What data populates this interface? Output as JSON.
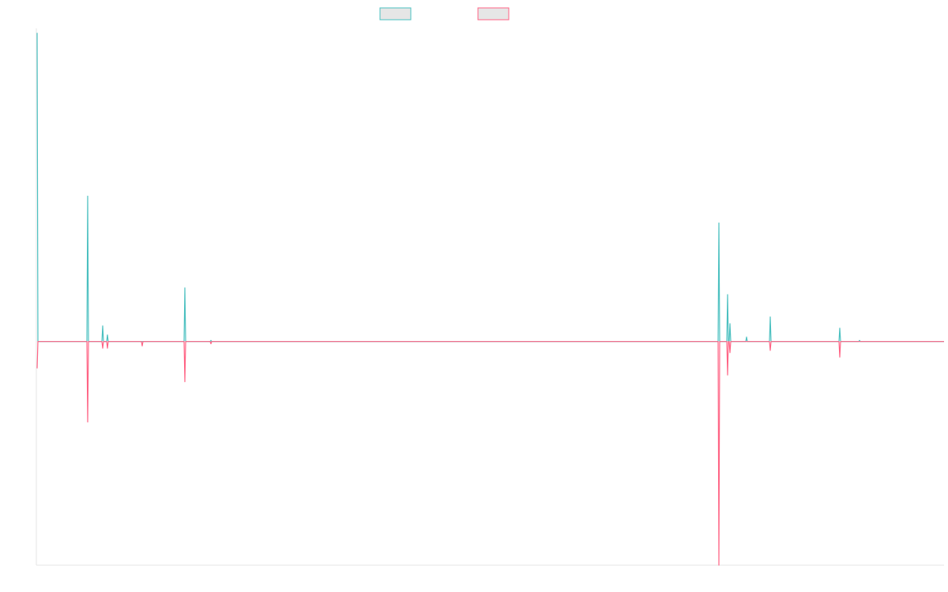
{
  "chart_data": {
    "type": "line",
    "title": "",
    "xlabel": "",
    "ylabel": "",
    "grid": false,
    "legend_position": "top-center",
    "colors": {
      "series_1": "#4bc0c0",
      "series_2": "#ff6384",
      "axis": "#e6e6e6",
      "legend_fill": "#e6e6e6"
    },
    "ylim": [
      -1.0,
      1.4
    ],
    "x": [
      1,
      2,
      3,
      4,
      5,
      6,
      7,
      8,
      9,
      10,
      11,
      12,
      13,
      14,
      15,
      16,
      17,
      18,
      19,
      20,
      21,
      22,
      23,
      24,
      25,
      26,
      27,
      28,
      29,
      30,
      31,
      32,
      33,
      34,
      35,
      36,
      37,
      38,
      39,
      40,
      41,
      42,
      43,
      44,
      45,
      46,
      47,
      48,
      49,
      50,
      51,
      52,
      53,
      54,
      55,
      56,
      57,
      58,
      59,
      60,
      61,
      62,
      63,
      64,
      65,
      66,
      67,
      68,
      69,
      70,
      71,
      72,
      73,
      74,
      75,
      76,
      77,
      78,
      79,
      80,
      81,
      82,
      83,
      84,
      85,
      86,
      87,
      88,
      89,
      90,
      91,
      92,
      93,
      94,
      95,
      96,
      97,
      98,
      99,
      100,
      101,
      102,
      103,
      104,
      105,
      106,
      107,
      108,
      109,
      110,
      111,
      112,
      113,
      114,
      115,
      116,
      117,
      118,
      119,
      120,
      121,
      122,
      123,
      124,
      125,
      126,
      127,
      128,
      129,
      130,
      131,
      132,
      133,
      134,
      135,
      136,
      137,
      138,
      139,
      140,
      141,
      142,
      143,
      144,
      145,
      146,
      147,
      148,
      149,
      150,
      151,
      152,
      153,
      154,
      155,
      156,
      157,
      158,
      159,
      160,
      161,
      162,
      163,
      164,
      165,
      166,
      167,
      168,
      169,
      170,
      171,
      172,
      173,
      174,
      175,
      176,
      177,
      178,
      179,
      180,
      181,
      182,
      183,
      184,
      185,
      186,
      187,
      188,
      189,
      190,
      191,
      192,
      193,
      194,
      195,
      196,
      197,
      198,
      199,
      200,
      201,
      202,
      203,
      204,
      205,
      206,
      207,
      208,
      209,
      210,
      211,
      212,
      213,
      214,
      215,
      216,
      217,
      218,
      219,
      220,
      221,
      222,
      223,
      224,
      225,
      226,
      227,
      228,
      229,
      230,
      231,
      232,
      233,
      234,
      235,
      236,
      237,
      238,
      239,
      240,
      241,
      242,
      243,
      244,
      245,
      246,
      247,
      248,
      249,
      250,
      251,
      252,
      253,
      254,
      255,
      256,
      257,
      258,
      259,
      260,
      261,
      262,
      263,
      264,
      265,
      266,
      267,
      268,
      269,
      270,
      271,
      272,
      273,
      274,
      275,
      276,
      277,
      278,
      279,
      280,
      281,
      282,
      283,
      284,
      285,
      286,
      287,
      288,
      289,
      290,
      291,
      292,
      293,
      294,
      295,
      296,
      297,
      298,
      299,
      300,
      301,
      302,
      303,
      304,
      305,
      306,
      307,
      308,
      309,
      310,
      311,
      312,
      313,
      314,
      315,
      316,
      317,
      318,
      319,
      320,
      321,
      322,
      323,
      324,
      325,
      326,
      327,
      328,
      329,
      330,
      331,
      332,
      333,
      334,
      335,
      336,
      337,
      338,
      339,
      340,
      341,
      342,
      343,
      344,
      345,
      346,
      347,
      348,
      349,
      350,
      351,
      352,
      353,
      354,
      355,
      356,
      357,
      358,
      359,
      360,
      361,
      362,
      363,
      364,
      365,
      366,
      367,
      368,
      369,
      370,
      371,
      372,
      373,
      374,
      375,
      376,
      377,
      378,
      379,
      380,
      381,
      382,
      383,
      384,
      385,
      386,
      387,
      388,
      389,
      390,
      391,
      392,
      393,
      394,
      395,
      396,
      397,
      398,
      399,
      400,
      401,
      402,
      403,
      404,
      405,
      406,
      407,
      408,
      409,
      410,
      411,
      412,
      413,
      414,
      415,
      416,
      417,
      418,
      419,
      420,
      421,
      422,
      423,
      424,
      425,
      426,
      427,
      428,
      429,
      430,
      431,
      432,
      433,
      434,
      435,
      436,
      437,
      438,
      439,
      440,
      441,
      442,
      443,
      444,
      445,
      446,
      447,
      448,
      449,
      450,
      451,
      452,
      453,
      454,
      455,
      456,
      457,
      458,
      459,
      460,
      461,
      462,
      463,
      464,
      465,
      466,
      467,
      468,
      469,
      470,
      471,
      472,
      473,
      474,
      475,
      476,
      477,
      478,
      479,
      480,
      481,
      482,
      483,
      484,
      485,
      486,
      487,
      488,
      489,
      490,
      491,
      492,
      493,
      494,
      495,
      496,
      497,
      498,
      499,
      500,
      501,
      502,
      503,
      504,
      505,
      506,
      507,
      508,
      509,
      510,
      511,
      512,
      513,
      514,
      515,
      516,
      517,
      518,
      519,
      520,
      521,
      522,
      523,
      524,
      525,
      526,
      527,
      528,
      529,
      530,
      531,
      532,
      533,
      534,
      535,
      536,
      537,
      538,
      539,
      540,
      541,
      542,
      543,
      544,
      545,
      546,
      547,
      548,
      549,
      550,
      551,
      552,
      553,
      554,
      555,
      556,
      557,
      558,
      559,
      560,
      561,
      562,
      563,
      564,
      565,
      566,
      567,
      568,
      569,
      570,
      571,
      572,
      573,
      574,
      575,
      576,
      577,
      578,
      579,
      580,
      581,
      582,
      583,
      584,
      585,
      586,
      587,
      588,
      589,
      590,
      591,
      592,
      593,
      594,
      595,
      596,
      597,
      598,
      599,
      600,
      601,
      602,
      603,
      604,
      605,
      606,
      607,
      608,
      609,
      610,
      611,
      612,
      613,
      614,
      615,
      616,
      617,
      618,
      619,
      620,
      621,
      622,
      623,
      624,
      625,
      626,
      627,
      628,
      629,
      630,
      631,
      632,
      633,
      634,
      635,
      636,
      637,
      638,
      639,
      640,
      641,
      642,
      643,
      644,
      645,
      646,
      647,
      648,
      649,
      650,
      651,
      652,
      653,
      654,
      655,
      656,
      657,
      658,
      659,
      660,
      661,
      662,
      663,
      664,
      665,
      666,
      667,
      668,
      669,
      670,
      671,
      672,
      673,
      674,
      675,
      676,
      677,
      678,
      679,
      680,
      681,
      682,
      683,
      684,
      685,
      686,
      687,
      688,
      689,
      690,
      691,
      692,
      693,
      694,
      695,
      696,
      697,
      698,
      699,
      700,
      701,
      702,
      703,
      704,
      705,
      706,
      707,
      708,
      709,
      710,
      711,
      712,
      713,
      714,
      715,
      716,
      717,
      718,
      719,
      720,
      721,
      722,
      723,
      724,
      725,
      726,
      727,
      728,
      729,
      730,
      731,
      732,
      733,
      734,
      735,
      736,
      737,
      738,
      739,
      740,
      741,
      742,
      743,
      744,
      745,
      746,
      747,
      748,
      749,
      750,
      751,
      752,
      753,
      754,
      755,
      756,
      757,
      758,
      759,
      760,
      761,
      762,
      763,
      764,
      765,
      766,
      767,
      768,
      769,
      770,
      771,
      772,
      773,
      774,
      775,
      776,
      777,
      778,
      779,
      780,
      781,
      782,
      783,
      784,
      785,
      786,
      787,
      788,
      789,
      790,
      791,
      792,
      793,
      794,
      795,
      796,
      797,
      798,
      799,
      800,
      801,
      802,
      803,
      804,
      805,
      806,
      807,
      808,
      809,
      810,
      811,
      812,
      813,
      814,
      815,
      816,
      817,
      818,
      819,
      820,
      821,
      822,
      823,
      824,
      825,
      826,
      827,
      828,
      829,
      830,
      831,
      832,
      833,
      834,
      835,
      836,
      837,
      838,
      839,
      840,
      841,
      842,
      843,
      844,
      845,
      846,
      847,
      848,
      849,
      850,
      851,
      852,
      853,
      854,
      855,
      856,
      857,
      858,
      859,
      860,
      861,
      862,
      863,
      864,
      865,
      866,
      867,
      868,
      869,
      870,
      871,
      872,
      873,
      874,
      875,
      876,
      877,
      878,
      879,
      880,
      881,
      882,
      883,
      884,
      885,
      886,
      887,
      888,
      889,
      890,
      891,
      892,
      893,
      894,
      895,
      896,
      897,
      898,
      899,
      900,
      901,
      902,
      903,
      904,
      905,
      906,
      907,
      908,
      909,
      910,
      911,
      912,
      913,
      914,
      915,
      916,
      917,
      918,
      919,
      920,
      921,
      922,
      923,
      924,
      925,
      926,
      927,
      928,
      929,
      930,
      931,
      932,
      933,
      934,
      935,
      936,
      937,
      938,
      939,
      940,
      941,
      942,
      943,
      944,
      945,
      946,
      947,
      948,
      949,
      950,
      951,
      952,
      953,
      954,
      955,
      956,
      957,
      958,
      959,
      960,
      961,
      962,
      963,
      964,
      965,
      966,
      967,
      968,
      969,
      970,
      971,
      972,
      973,
      974,
      975,
      976,
      977,
      978,
      979,
      980,
      981,
      982,
      983,
      984,
      985,
      986,
      987,
      988,
      989,
      990,
      991,
      992,
      993,
      994,
      995,
      996,
      997,
      998,
      999,
      1000,
      1001,
      1002,
      1003,
      1004,
      1005,
      1006,
      1007,
      1008,
      1009,
      1010,
      1011,
      1012,
      1013,
      1014,
      1015,
      1016,
      1017,
      1018,
      1019,
      1020,
      1021,
      1022,
      1023,
      1024,
      1025,
      1026,
      1027,
      1028,
      1029,
      1030,
      1031,
      1032,
      1033,
      1034,
      1035,
      1036,
      1037,
      1038,
      1039,
      1040,
      1041,
      1042,
      1043,
      1044,
      1045,
      1046,
      1047,
      1048,
      1049,
      1050,
      1051,
      1052,
      1053,
      1054,
      1055,
      1056,
      1057,
      1058,
      1059,
      1060,
      1061,
      1062,
      1063,
      1064,
      1065,
      1066,
      1067,
      1068,
      1069,
      1070,
      1071,
      1072,
      1073,
      1074,
      1075,
      1076,
      1077,
      1078,
      1079,
      1080,
      1081,
      1082,
      1083,
      1084,
      1085,
      1086,
      1087,
      1088,
      1089,
      1090,
      1091,
      1092,
      1093,
      1094,
      1095,
      1096,
      1097,
      1098,
      1099,
      1100,
      1101,
      1102,
      1103,
      1104,
      1105,
      1106,
      1107,
      1108,
      1109,
      1110,
      1111,
      1112,
      1113,
      1114,
      1115,
      1116,
      1117,
      1118,
      1119,
      1120,
      1121,
      1122,
      1123,
      1124,
      1125,
      1126,
      1127,
      1128,
      1129,
      1130,
      1131,
      1132,
      1133,
      1134,
      1135,
      1136,
      1137,
      1138,
      1139,
      1140,
      1141,
      1142,
      1143,
      1144,
      1145,
      1146,
      1147,
      1148,
      1149
    ],
    "series": [
      {
        "legend_index": 1,
        "peaks": [
          [
            1,
            1.38
          ],
          [
            65,
            0.65
          ],
          [
            84,
            0.07
          ],
          [
            90,
            0.03
          ],
          [
            188,
            0.24
          ],
          [
            221,
            0.005
          ],
          [
            864,
            0.53
          ],
          [
            875,
            0.21
          ],
          [
            878,
            0.08
          ],
          [
            899,
            0.02
          ],
          [
            929,
            0.11
          ],
          [
            1017,
            0.06
          ],
          [
            1042,
            0.005
          ]
        ]
      },
      {
        "legend_index": 2,
        "peaks": [
          [
            1,
            -0.12
          ],
          [
            65,
            -0.36
          ],
          [
            84,
            -0.03
          ],
          [
            90,
            -0.03
          ],
          [
            134,
            -0.02
          ],
          [
            188,
            -0.18
          ],
          [
            221,
            -0.01
          ],
          [
            864,
            -1.0
          ],
          [
            875,
            -0.15
          ],
          [
            878,
            -0.05
          ],
          [
            929,
            -0.04
          ],
          [
            1017,
            -0.07
          ]
        ]
      }
    ]
  }
}
